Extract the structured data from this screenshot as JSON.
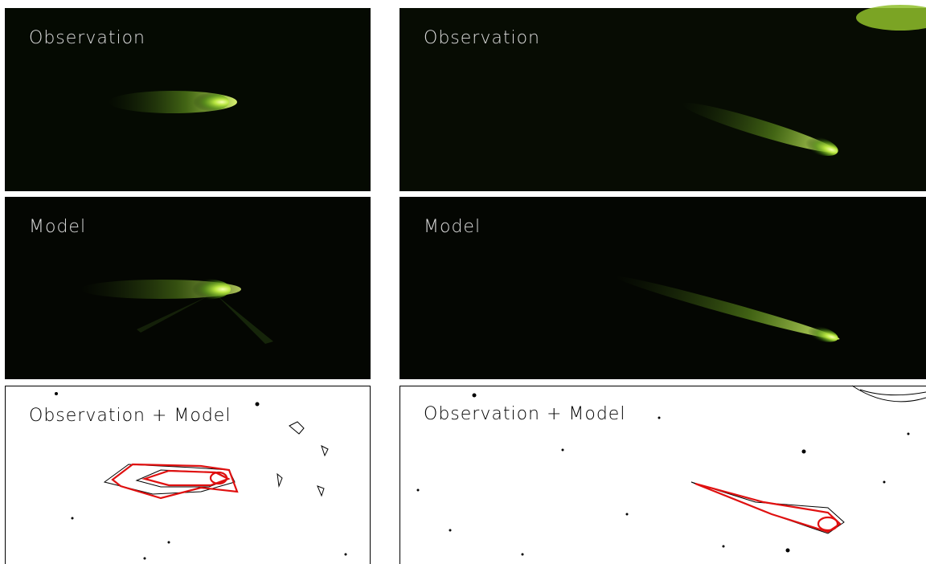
{
  "panels": [
    {
      "label": "Observation"
    },
    {
      "label": "Observation"
    },
    {
      "label": "Model"
    },
    {
      "label": "Model"
    },
    {
      "label": "Observation + Model"
    },
    {
      "label": "Observation + Model"
    }
  ]
}
